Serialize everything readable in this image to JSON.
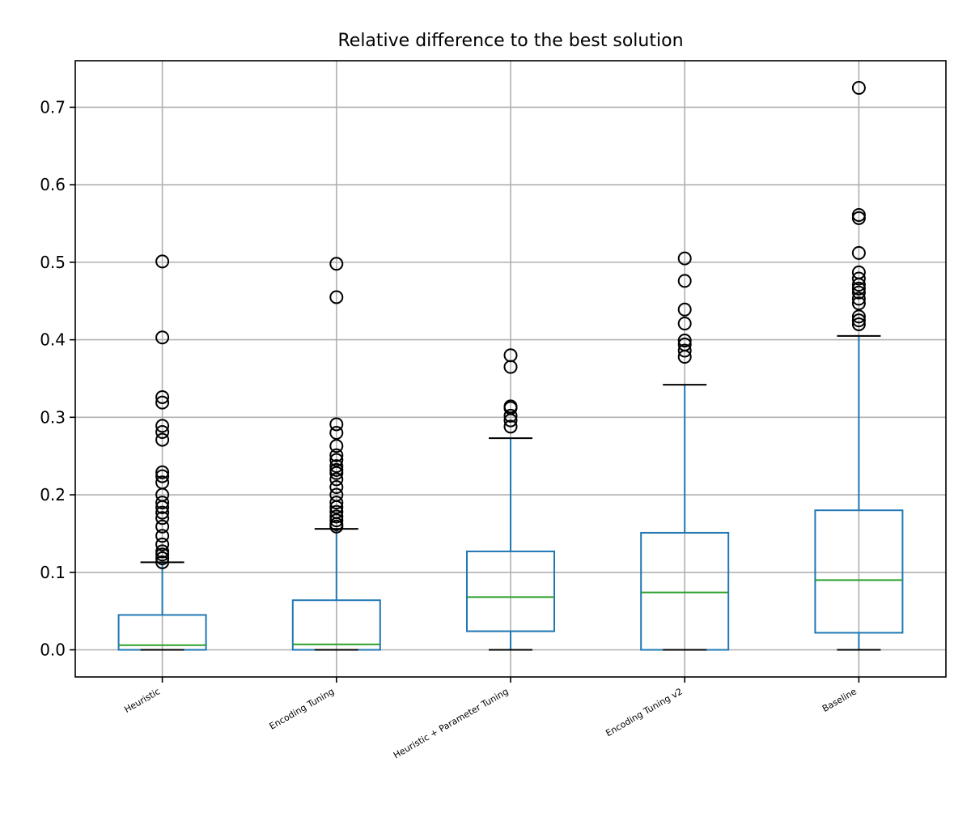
{
  "chart_data": {
    "type": "boxplot",
    "title": "Relative difference to the best solution",
    "xlabel": "",
    "ylabel": "",
    "ylim": [
      -0.035,
      0.76
    ],
    "yticks": [
      0.0,
      0.1,
      0.2,
      0.3,
      0.4,
      0.5,
      0.6,
      0.7
    ],
    "ytick_labels": [
      "0.0",
      "0.1",
      "0.2",
      "0.3",
      "0.4",
      "0.5",
      "0.6",
      "0.7"
    ],
    "grid": true,
    "categories": [
      "Heuristic",
      "Encoding Tuning",
      "Heuristic + Parameter Tuning",
      "Encoding Tuning v2",
      "Baseline"
    ],
    "boxes": [
      {
        "name": "Heuristic",
        "whislo": 0.0,
        "q1": 0.0,
        "med": 0.006,
        "q3": 0.045,
        "whishi": 0.113,
        "fliers": [
          0.501,
          0.403,
          0.326,
          0.319,
          0.289,
          0.281,
          0.271,
          0.229,
          0.224,
          0.216,
          0.2,
          0.19,
          0.184,
          0.177,
          0.17,
          0.159,
          0.147,
          0.136,
          0.127,
          0.123,
          0.118,
          0.113
        ]
      },
      {
        "name": "Encoding Tuning",
        "whislo": 0.0,
        "q1": 0.0,
        "med": 0.007,
        "q3": 0.064,
        "whishi": 0.156,
        "fliers": [
          0.498,
          0.455,
          0.291,
          0.28,
          0.263,
          0.251,
          0.245,
          0.237,
          0.232,
          0.228,
          0.22,
          0.21,
          0.2,
          0.19,
          0.184,
          0.178,
          0.172,
          0.167,
          0.162,
          0.159
        ]
      },
      {
        "name": "Heuristic + Parameter Tuning",
        "whislo": 0.0,
        "q1": 0.024,
        "med": 0.068,
        "q3": 0.127,
        "whishi": 0.273,
        "fliers": [
          0.38,
          0.365,
          0.314,
          0.312,
          0.302,
          0.296,
          0.288
        ]
      },
      {
        "name": "Encoding Tuning v2",
        "whislo": 0.0,
        "q1": 0.0,
        "med": 0.074,
        "q3": 0.151,
        "whishi": 0.342,
        "fliers": [
          0.505,
          0.476,
          0.439,
          0.421,
          0.399,
          0.394,
          0.386,
          0.378
        ]
      },
      {
        "name": "Baseline",
        "whislo": 0.0,
        "q1": 0.022,
        "med": 0.09,
        "q3": 0.18,
        "whishi": 0.405,
        "fliers": [
          0.725,
          0.561,
          0.557,
          0.512,
          0.487,
          0.479,
          0.471,
          0.466,
          0.461,
          0.453,
          0.447,
          0.43,
          0.425,
          0.42
        ]
      }
    ],
    "colors": {
      "box": "#1f77b4",
      "median": "#2ca02c",
      "whisker": "#1f77b4",
      "cap": "#000000",
      "flier": "#000000",
      "grid": "#b0b0b0",
      "axes": "#000000"
    }
  }
}
